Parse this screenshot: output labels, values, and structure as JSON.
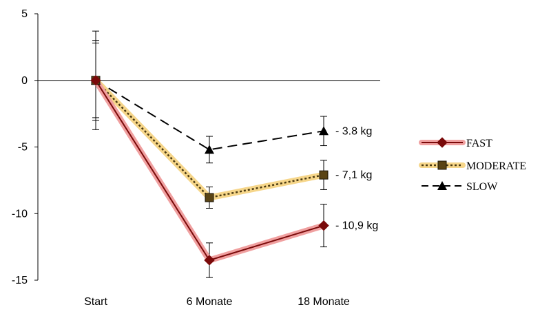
{
  "chart_data": {
    "type": "line",
    "categories": [
      "Start",
      "6 Monate",
      "18 Monate"
    ],
    "ylim": [
      -15,
      5
    ],
    "yticks": [
      5,
      0,
      -5,
      -10,
      -15
    ],
    "grid": false,
    "legend_position": "right",
    "series": [
      {
        "name": "FAST",
        "values": [
          0,
          -13.5,
          -10.9
        ],
        "error": [
          3.7,
          1.3,
          1.6
        ],
        "color": "#7a0a0a",
        "halo": "#f0a0a0",
        "marker": "diamond",
        "line_style": "solid",
        "end_label": "- 10,9 kg"
      },
      {
        "name": "MODERATE",
        "values": [
          0,
          -8.8,
          -7.1
        ],
        "error": [
          3.0,
          0.8,
          1.1
        ],
        "color": "#4a3a12",
        "halo": "#f6d68a",
        "marker": "square",
        "line_style": "dotted",
        "end_label": "- 7,1 kg"
      },
      {
        "name": "SLOW",
        "values": [
          0,
          -5.2,
          -3.8
        ],
        "error": [
          2.8,
          1.0,
          1.1
        ],
        "color": "#000000",
        "halo": "",
        "marker": "triangle",
        "line_style": "dashed",
        "end_label": "- 3.8 kg"
      }
    ]
  }
}
